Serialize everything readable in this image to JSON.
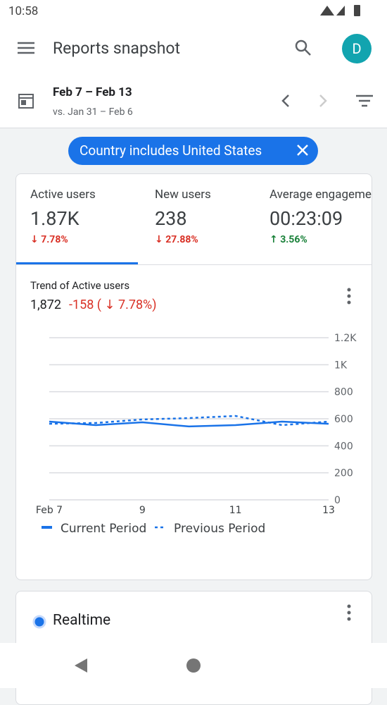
{
  "status_bar": {
    "time": "10:58"
  },
  "app_bar": {
    "title": "Reports snapshot",
    "avatar": "D"
  },
  "date_range": {
    "primary": "Feb 7 – Feb 13",
    "comparison": "vs. Jan 31 – Feb 6"
  },
  "filter_chip": {
    "label": "Country includes United States"
  },
  "metrics": [
    {
      "label": "Active users",
      "value": "1.87K",
      "change": "↓ 7.78%",
      "trend": "down"
    },
    {
      "label": "New users",
      "value": "238",
      "change": "↓ 27.88%",
      "trend": "down"
    },
    {
      "label": "Average engagement time",
      "value": "00:23:09",
      "change": "↑ 3.56%",
      "trend": "up"
    }
  ],
  "trend": {
    "title": "Trend of Active users",
    "value": "1,872",
    "delta": "-158 ( ↓ 7.78%)"
  },
  "chart_data": {
    "type": "line",
    "categories": [
      "Feb 7",
      null,
      "9",
      null,
      "11",
      null,
      "13"
    ],
    "series": [
      {
        "name": "Current Period",
        "color": "#1a73e8",
        "dash": false,
        "values": [
          579,
          553,
          574,
          543,
          553,
          579,
          563
        ]
      },
      {
        "name": "Previous Period",
        "color": "#1a73e8",
        "dash": true,
        "values": [
          563,
          569,
          595,
          605,
          621,
          553,
          579
        ]
      }
    ],
    "ylim": [
      0,
      1200
    ],
    "yticks": [
      0,
      200,
      400,
      600,
      800,
      {
        "value": 1000,
        "label": "1K"
      },
      {
        "value": 1200,
        "label": "1.2K"
      }
    ],
    "grid": true
  },
  "realtime": {
    "title": "Realtime"
  }
}
